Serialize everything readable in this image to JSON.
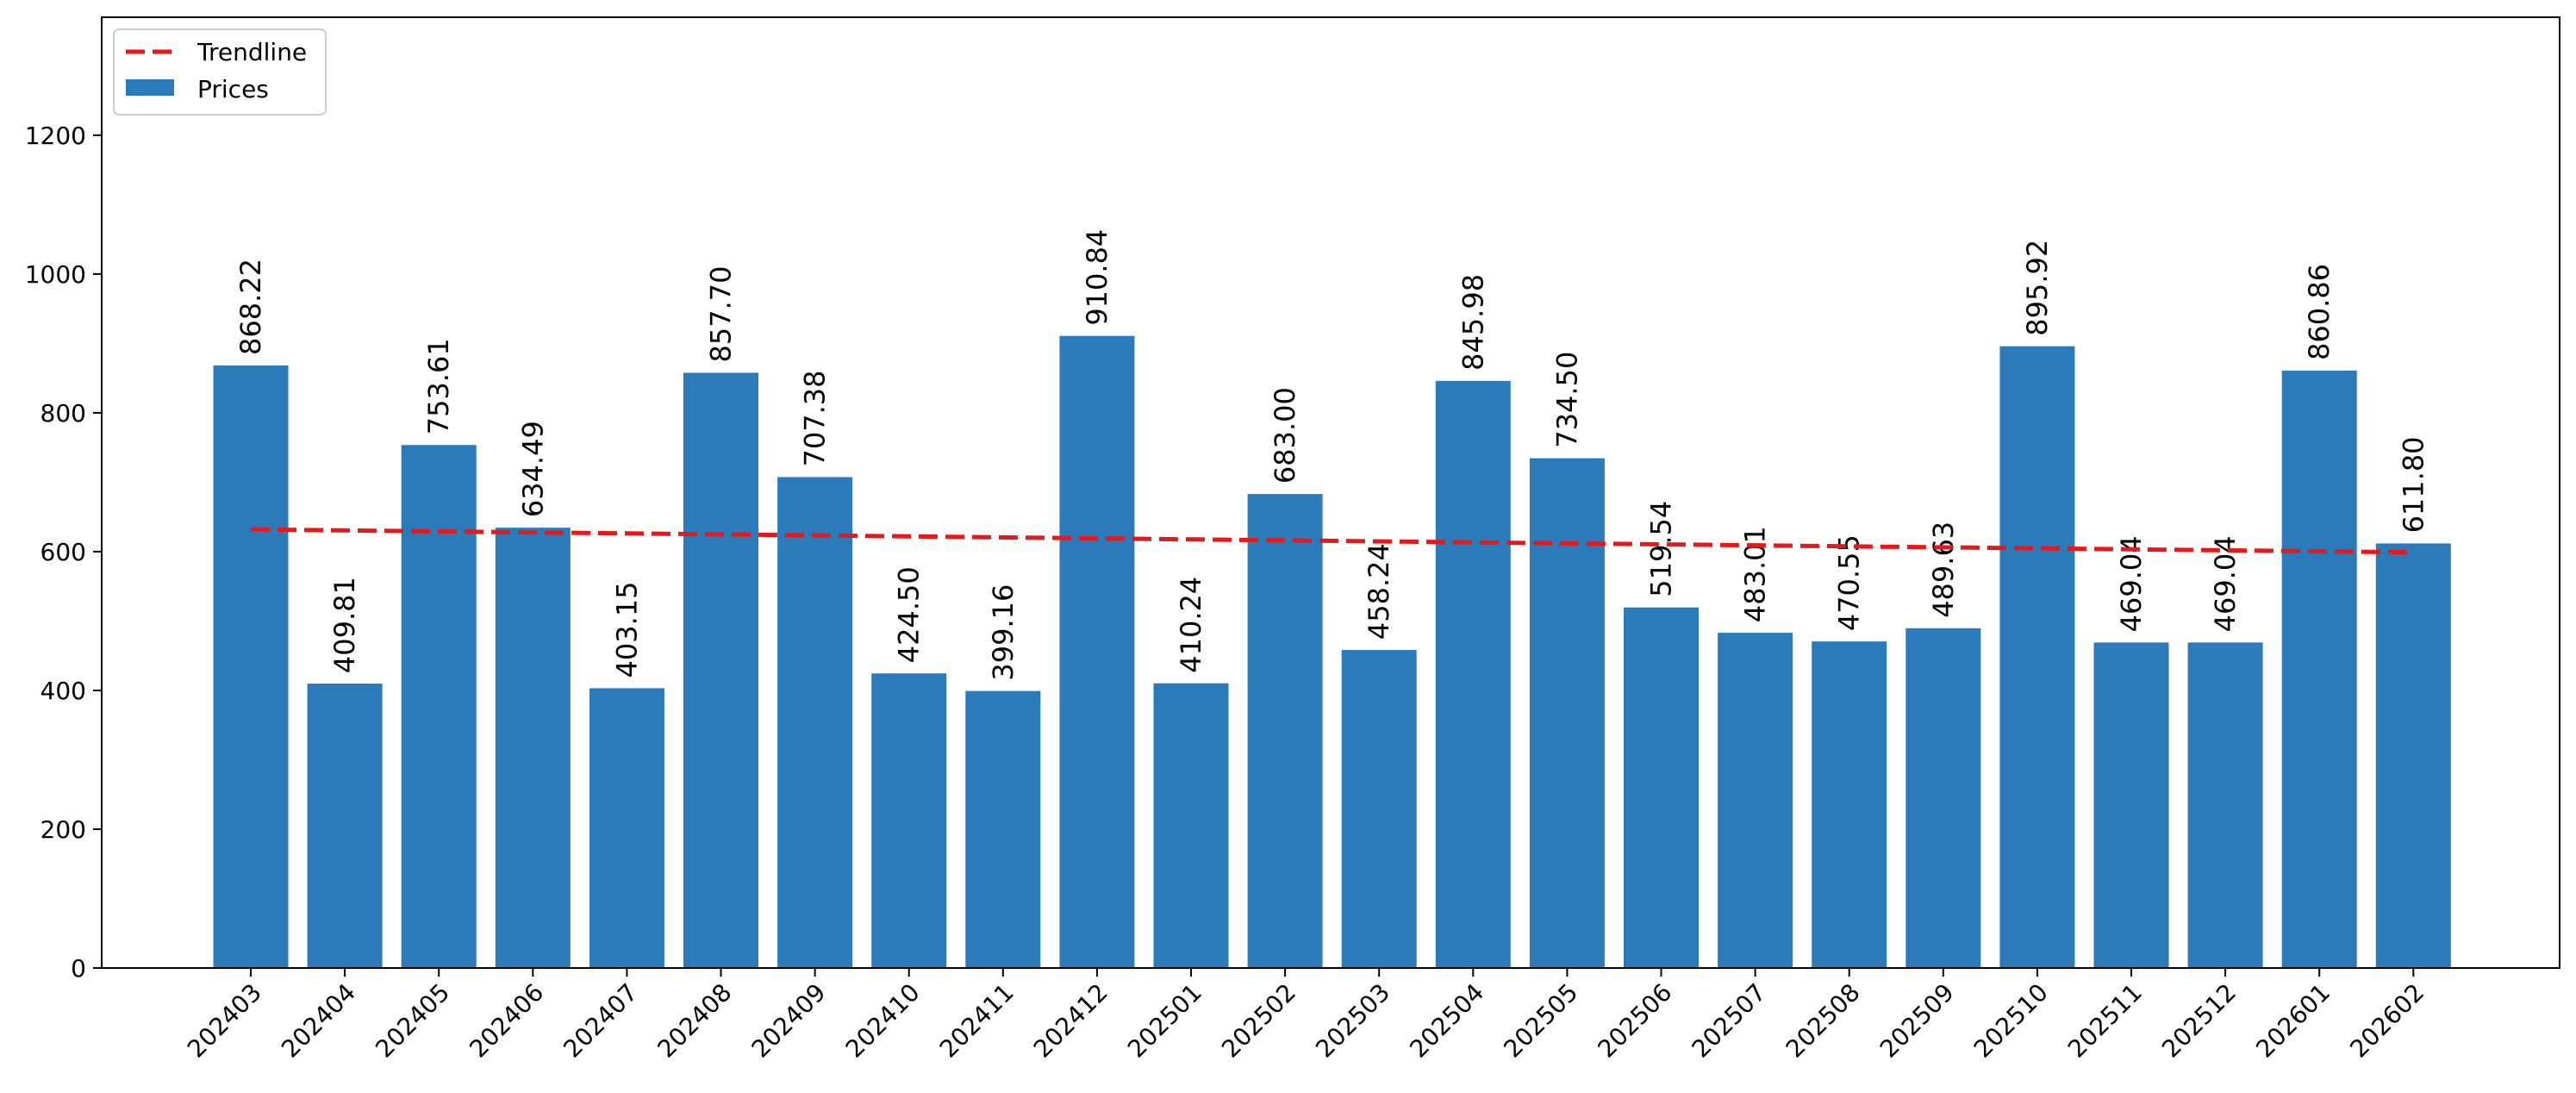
{
  "chart_data": {
    "type": "bar",
    "title": "",
    "xlabel": "",
    "ylabel": "",
    "ylim": [
      0,
      1370
    ],
    "yticks": [
      0,
      200,
      400,
      600,
      800,
      1000,
      1200
    ],
    "categories": [
      "202403",
      "202404",
      "202405",
      "202406",
      "202407",
      "202408",
      "202409",
      "202410",
      "202411",
      "202412",
      "202501",
      "202502",
      "202503",
      "202504",
      "202505",
      "202506",
      "202507",
      "202508",
      "202509",
      "202510",
      "202511",
      "202512",
      "202601",
      "202602"
    ],
    "series": [
      {
        "name": "Prices",
        "color": "#2b7bba",
        "values": [
          868.22,
          409.81,
          753.61,
          634.49,
          403.15,
          857.7,
          707.38,
          424.5,
          399.16,
          910.84,
          410.24,
          683.0,
          458.24,
          845.98,
          734.5,
          519.54,
          483.01,
          470.55,
          489.63,
          895.92,
          469.04,
          469.04,
          860.86,
          611.8
        ],
        "labels": [
          "868.22",
          "409.81",
          "753.61",
          "634.49",
          "403.15",
          "857.70",
          "707.38",
          "424.50",
          "399.16",
          "910.84",
          "410.24",
          "683.00",
          "458.24",
          "845.98",
          "734.50",
          "519.54",
          "483.01",
          "470.55",
          "489.63",
          "895.92",
          "469.04",
          "469.04",
          "860.86",
          "611.80"
        ]
      }
    ],
    "trendline": {
      "name": "Trendline",
      "color": "#e31a1c",
      "start": 632,
      "end": 599
    },
    "legend": {
      "placement": "top-left",
      "entries": [
        "Trendline",
        "Prices"
      ]
    },
    "grid": false
  }
}
